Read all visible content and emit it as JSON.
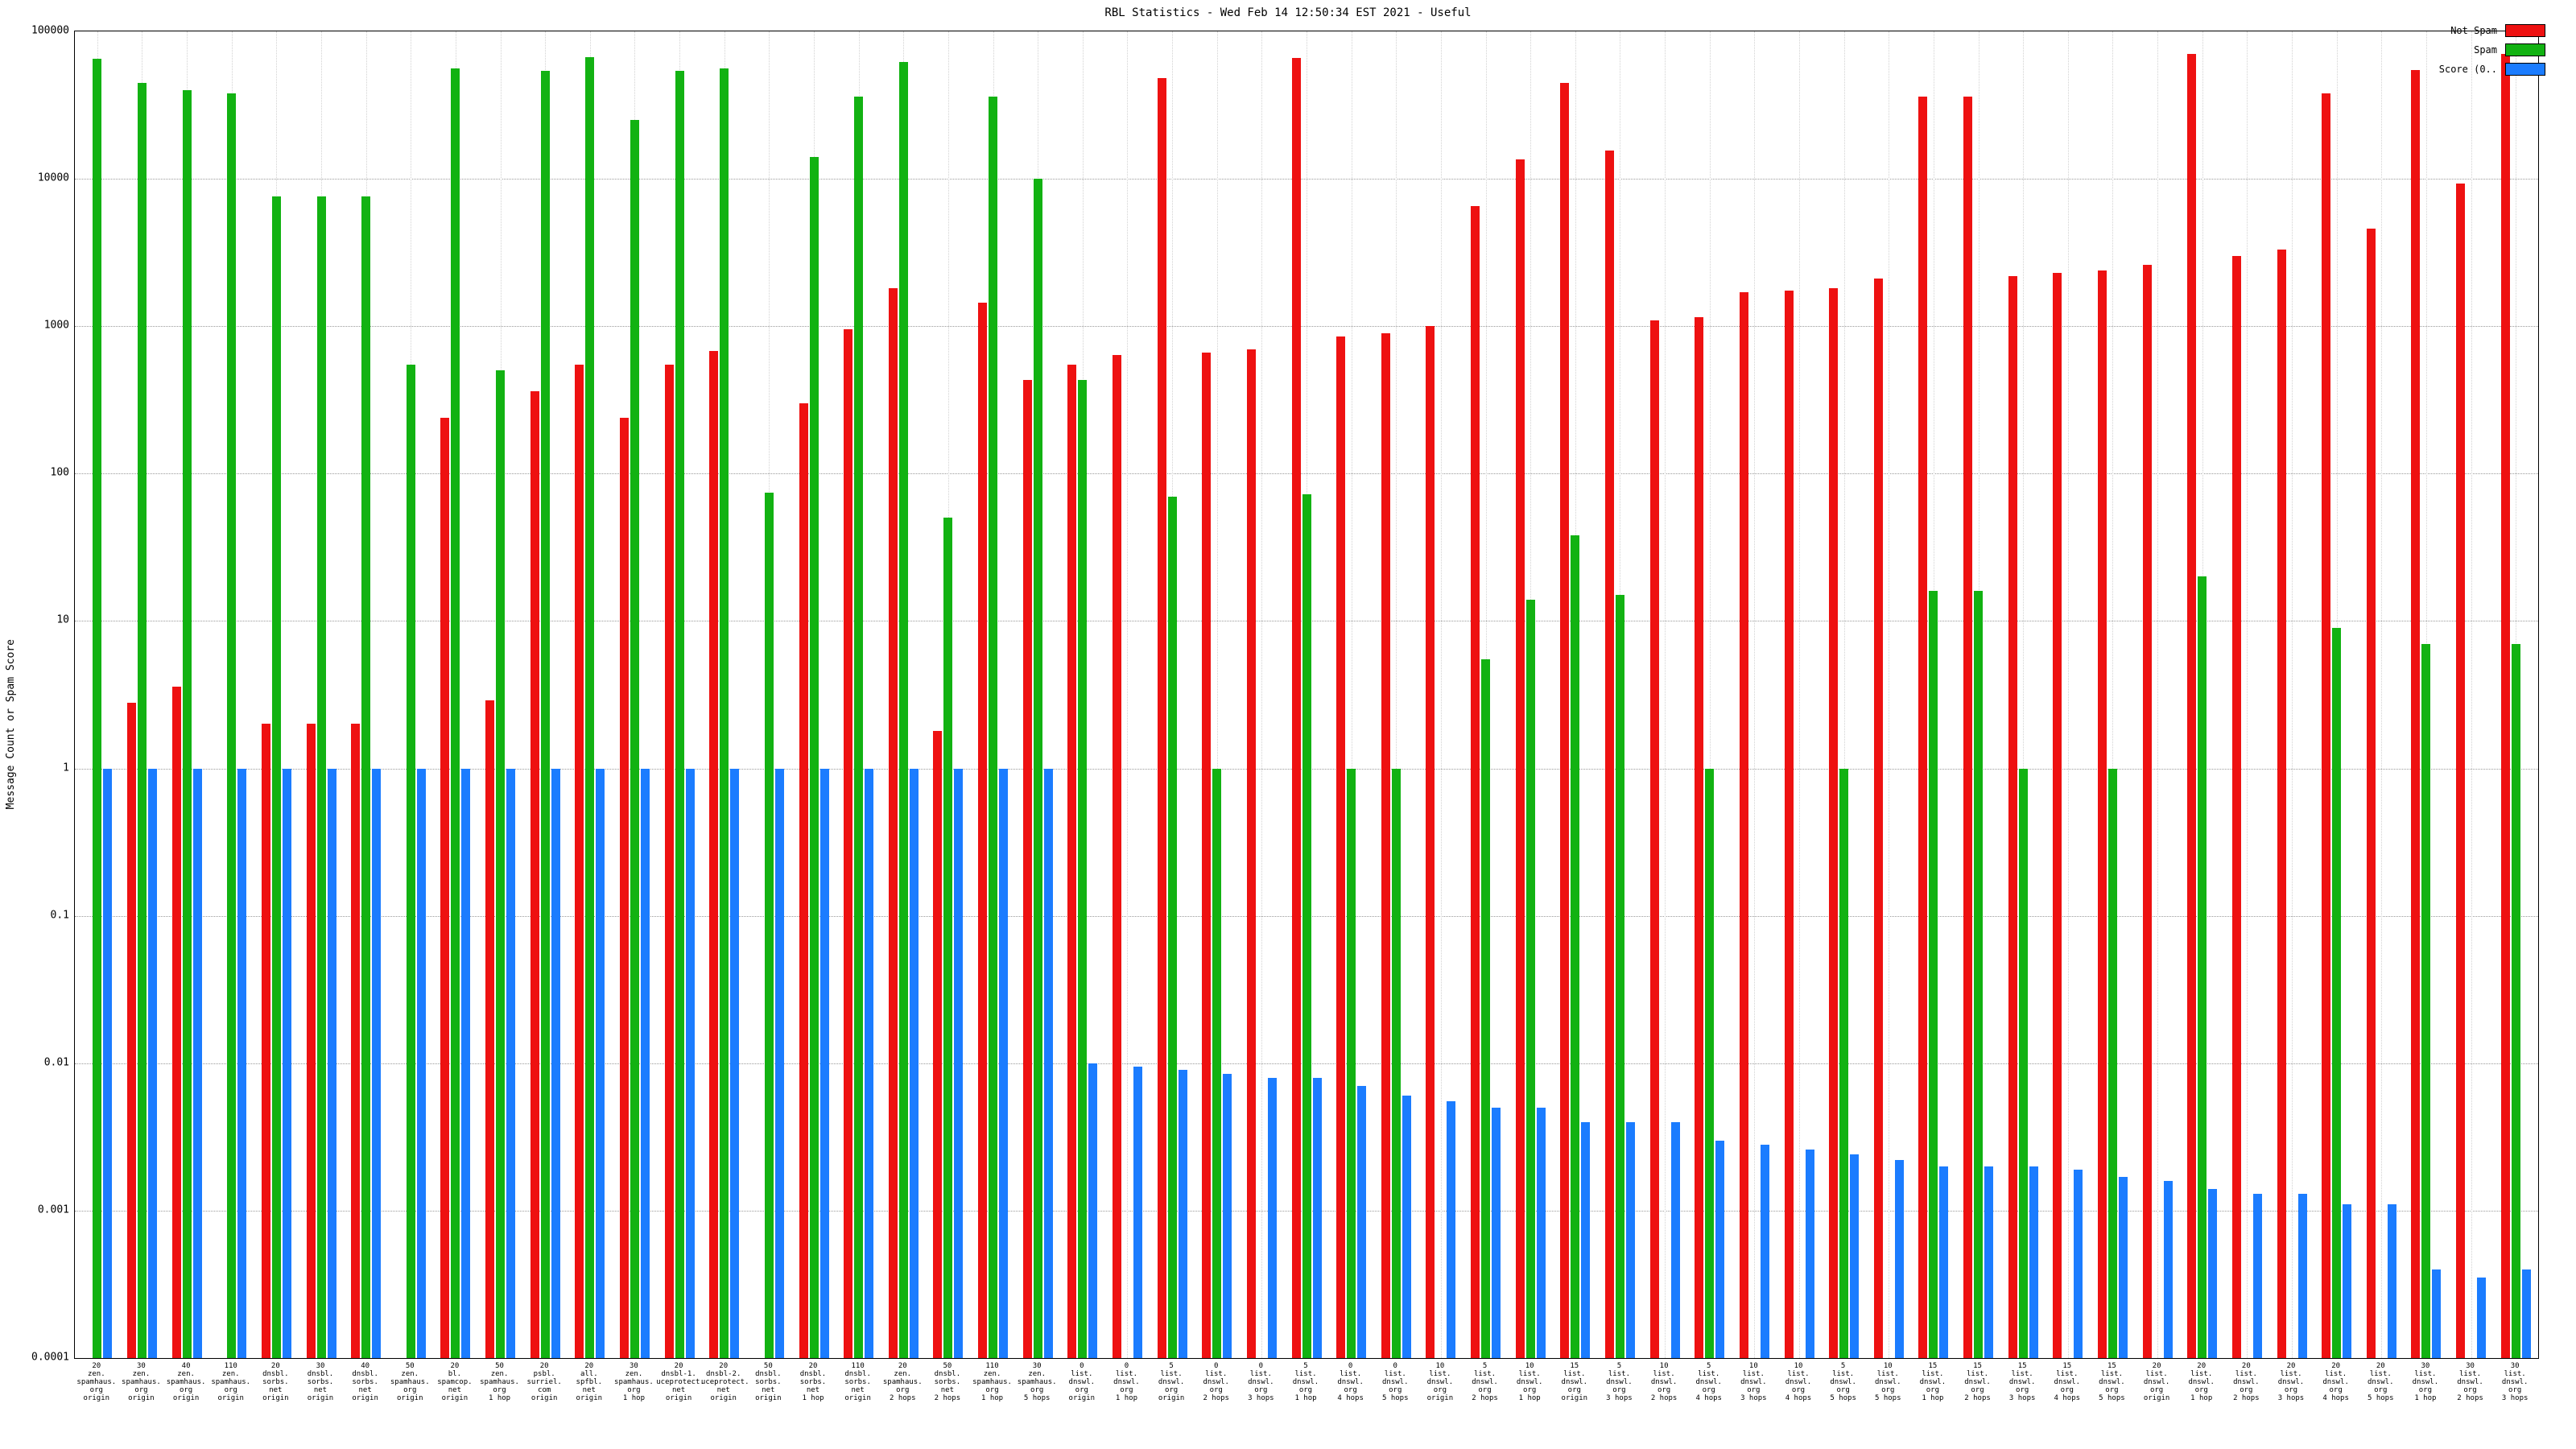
{
  "chart_data": {
    "type": "bar",
    "title": "RBL Statistics - Wed Feb 14 12:50:34 EST 2021 - Useful",
    "ylabel": "Message Count or Spam Score",
    "yscale": "log",
    "ylim": [
      0.0001,
      100000
    ],
    "yticks": [
      "100000",
      "10000",
      "1000",
      "100",
      "10",
      "1",
      "0.1",
      "0.01",
      "0.001",
      "0.0001"
    ],
    "grid": true,
    "legend_position": "top-right",
    "categories": [
      [
        "20",
        "zen.",
        "spamhaus.",
        "org",
        "origin"
      ],
      [
        "30",
        "zen.",
        "spamhaus.",
        "org",
        "origin"
      ],
      [
        "40",
        "zen.",
        "spamhaus.",
        "org",
        "origin"
      ],
      [
        "110",
        "zen.",
        "spamhaus.",
        "org",
        "origin"
      ],
      [
        "20",
        "dnsbl.",
        "sorbs.",
        "net",
        "origin"
      ],
      [
        "30",
        "dnsbl.",
        "sorbs.",
        "net",
        "origin"
      ],
      [
        "40",
        "dnsbl.",
        "sorbs.",
        "net",
        "origin"
      ],
      [
        "50",
        "zen.",
        "spamhaus.",
        "org",
        "origin"
      ],
      [
        "20",
        "bl.",
        "spamcop.",
        "net",
        "origin"
      ],
      [
        "50",
        "zen.",
        "spamhaus.",
        "org",
        "1 hop"
      ],
      [
        "20",
        "psbl.",
        "surriel.",
        "com",
        "origin"
      ],
      [
        "20",
        "all.",
        "spfbl.",
        "net",
        "origin"
      ],
      [
        "30",
        "zen.",
        "spamhaus.",
        "org",
        "1 hop"
      ],
      [
        "20",
        "dnsbl-1.",
        "uceprotect.",
        "net",
        "origin"
      ],
      [
        "20",
        "dnsbl-2.",
        "uceprotect.",
        "net",
        "origin"
      ],
      [
        "50",
        "dnsbl.",
        "sorbs.",
        "net",
        "origin"
      ],
      [
        "20",
        "dnsbl.",
        "sorbs.",
        "net",
        "1 hop"
      ],
      [
        "110",
        "dnsbl.",
        "sorbs.",
        "net",
        "origin"
      ],
      [
        "20",
        "zen.",
        "spamhaus.",
        "org",
        "2 hops"
      ],
      [
        "50",
        "dnsbl.",
        "sorbs.",
        "net",
        "2 hops"
      ],
      [
        "110",
        "zen.",
        "spamhaus.",
        "org",
        "1 hop"
      ],
      [
        "30",
        "zen.",
        "spamhaus.",
        "org",
        "5 hops"
      ],
      [
        "0",
        "list.",
        "dnswl.",
        "org",
        "origin"
      ],
      [
        "0",
        "list.",
        "dnswl.",
        "org",
        "1 hop"
      ],
      [
        "5",
        "list.",
        "dnswl.",
        "org",
        "origin"
      ],
      [
        "0",
        "list.",
        "dnswl.",
        "org",
        "2 hops"
      ],
      [
        "0",
        "list.",
        "dnswl.",
        "org",
        "3 hops"
      ],
      [
        "5",
        "list.",
        "dnswl.",
        "org",
        "1 hop"
      ],
      [
        "0",
        "list.",
        "dnswl.",
        "org",
        "4 hops"
      ],
      [
        "0",
        "list.",
        "dnswl.",
        "org",
        "5 hops"
      ],
      [
        "10",
        "list.",
        "dnswl.",
        "org",
        "origin"
      ],
      [
        "5",
        "list.",
        "dnswl.",
        "org",
        "2 hops"
      ],
      [
        "10",
        "list.",
        "dnswl.",
        "org",
        "1 hop"
      ],
      [
        "15",
        "list.",
        "dnswl.",
        "org",
        "origin"
      ],
      [
        "5",
        "list.",
        "dnswl.",
        "org",
        "3 hops"
      ],
      [
        "10",
        "list.",
        "dnswl.",
        "org",
        "2 hops"
      ],
      [
        "5",
        "list.",
        "dnswl.",
        "org",
        "4 hops"
      ],
      [
        "10",
        "list.",
        "dnswl.",
        "org",
        "3 hops"
      ],
      [
        "10",
        "list.",
        "dnswl.",
        "org",
        "4 hops"
      ],
      [
        "5",
        "list.",
        "dnswl.",
        "org",
        "5 hops"
      ],
      [
        "10",
        "list.",
        "dnswl.",
        "org",
        "5 hops"
      ],
      [
        "15",
        "list.",
        "dnswl.",
        "org",
        "1 hop"
      ],
      [
        "15",
        "list.",
        "dnswl.",
        "org",
        "2 hops"
      ],
      [
        "15",
        "list.",
        "dnswl.",
        "org",
        "3 hops"
      ],
      [
        "15",
        "list.",
        "dnswl.",
        "org",
        "4 hops"
      ],
      [
        "15",
        "list.",
        "dnswl.",
        "org",
        "5 hops"
      ],
      [
        "20",
        "list.",
        "dnswl.",
        "org",
        "origin"
      ],
      [
        "20",
        "list.",
        "dnswl.",
        "org",
        "1 hop"
      ],
      [
        "20",
        "list.",
        "dnswl.",
        "org",
        "2 hops"
      ],
      [
        "20",
        "list.",
        "dnswl.",
        "org",
        "3 hops"
      ],
      [
        "20",
        "list.",
        "dnswl.",
        "org",
        "4 hops"
      ],
      [
        "20",
        "list.",
        "dnswl.",
        "org",
        "5 hops"
      ],
      [
        "30",
        "list.",
        "dnswl.",
        "org",
        "1 hop"
      ],
      [
        "30",
        "list.",
        "dnswl.",
        "org",
        "2 hops"
      ],
      [
        "30",
        "list.",
        "dnswl.",
        "org",
        "3 hops"
      ]
    ],
    "series": [
      {
        "key": "notspam",
        "label": "Not Spam",
        "color": "#ee1111",
        "values": [
          null,
          2.8,
          3.6,
          null,
          2,
          2,
          2,
          null,
          240,
          2.9,
          360,
          550,
          240,
          550,
          680,
          null,
          300,
          950,
          1800,
          1.8,
          1450,
          430,
          550,
          640,
          48000,
          660,
          700,
          66000,
          850,
          900,
          1000,
          6500,
          13500,
          45000,
          15500,
          1100,
          1150,
          1700,
          1750,
          1800,
          2100,
          36000,
          36000,
          2200,
          2300,
          2400,
          2600,
          70000,
          3000,
          3300,
          38000,
          4600,
          55000,
          9300,
          70000
        ]
      },
      {
        "key": "spam",
        "label": "Spam",
        "color": "#12b212",
        "values": [
          65000,
          45000,
          40000,
          38000,
          7600,
          7600,
          7600,
          550,
          56000,
          500,
          54000,
          67000,
          25000,
          54000,
          56000,
          74,
          14000,
          36000,
          62000,
          50,
          36000,
          10000,
          430,
          null,
          70,
          1,
          null,
          72,
          1,
          1,
          null,
          5.5,
          14,
          38,
          15,
          null,
          1,
          null,
          null,
          1,
          null,
          16,
          16,
          1,
          null,
          1,
          null,
          20,
          null,
          null,
          9,
          null,
          7,
          null,
          7
        ]
      },
      {
        "key": "score",
        "label": "Score (0..",
        "color": "#1b7cff",
        "values": [
          1,
          1,
          1,
          1,
          1,
          1,
          1,
          1,
          1,
          1,
          1,
          1,
          1,
          1,
          1,
          1,
          1,
          1,
          1,
          1,
          1,
          1,
          0.01,
          0.0095,
          0.009,
          0.0085,
          0.008,
          0.008,
          0.007,
          0.006,
          0.0055,
          0.005,
          0.005,
          0.004,
          0.004,
          0.004,
          0.003,
          0.0028,
          0.0026,
          0.0024,
          0.0022,
          0.002,
          0.002,
          0.002,
          0.0019,
          0.0017,
          0.0016,
          0.0014,
          0.0013,
          0.0013,
          0.0011,
          0.0011,
          0.0004,
          0.00035,
          0.0004
        ]
      }
    ]
  }
}
